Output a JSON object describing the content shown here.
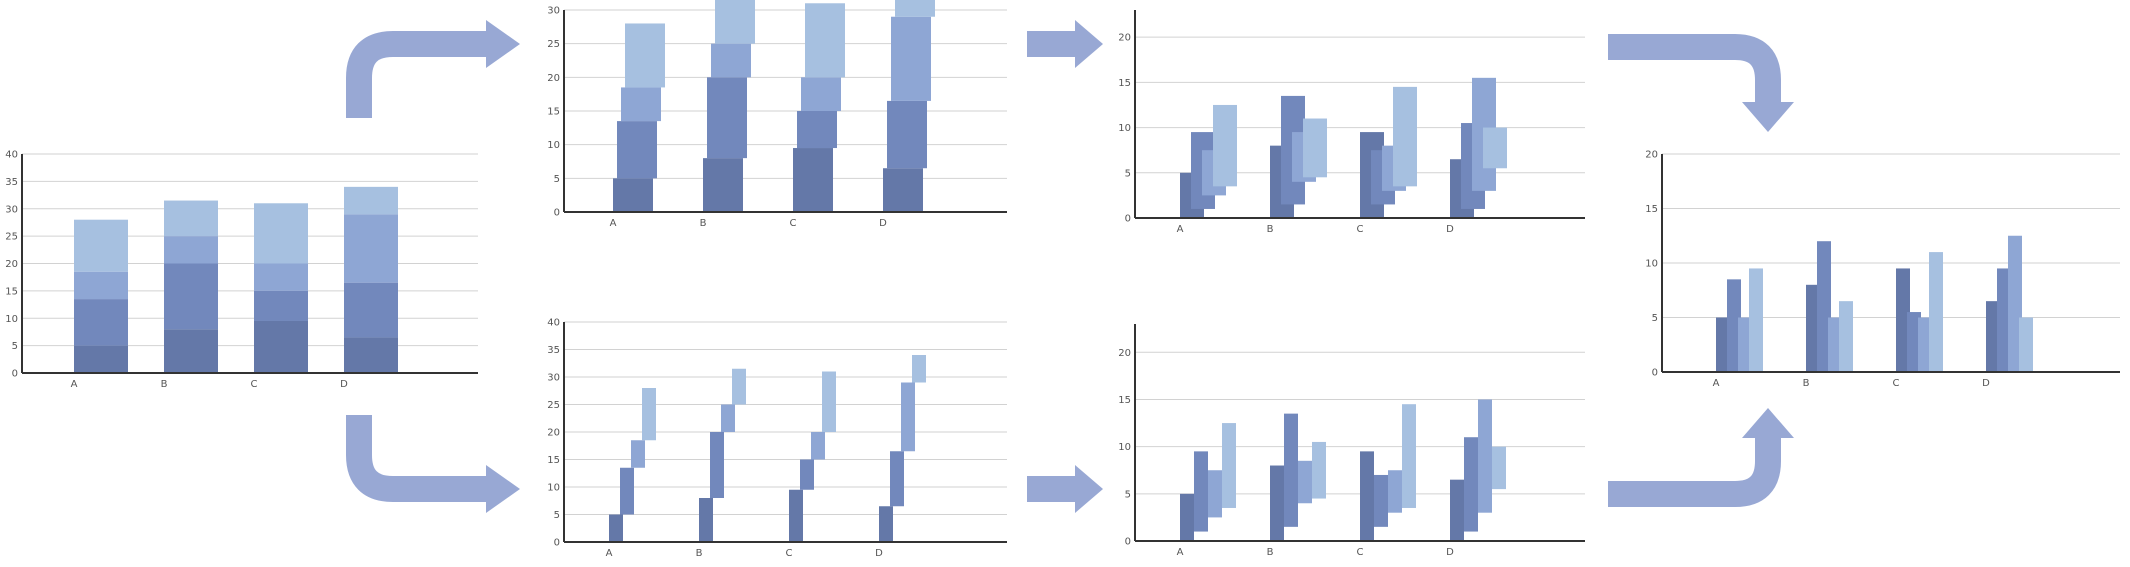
{
  "diagram": {
    "colors": {
      "arrow": "#98a8d4",
      "series": [
        "#6478a8",
        "#7288bc",
        "#8ea6d4",
        "#a6c0e0"
      ],
      "grid": "#d2d2d2",
      "axis": "#333333"
    }
  },
  "chart_data": [
    {
      "id": "stacked",
      "type": "bar",
      "mode": "stacked",
      "categories": [
        "A",
        "B",
        "C",
        "D"
      ],
      "series": [
        {
          "values": [
            5,
            8,
            9.5,
            6.5
          ]
        },
        {
          "values": [
            8.5,
            12,
            5.5,
            10
          ]
        },
        {
          "values": [
            5,
            5,
            5,
            12.5
          ]
        },
        {
          "values": [
            9.5,
            6.5,
            11,
            5
          ]
        }
      ],
      "ylim": [
        0,
        40
      ],
      "yticks": [
        0,
        5,
        10,
        15,
        20,
        25,
        30,
        35,
        40
      ],
      "grid": true
    },
    {
      "id": "stacked-overlapping",
      "type": "bar",
      "mode": "stacked-overlapping",
      "categories": [
        "A",
        "B",
        "C",
        "D"
      ],
      "series": [
        {
          "values": [
            5,
            8,
            9.5,
            6.5
          ]
        },
        {
          "values": [
            8.5,
            12,
            5.5,
            10
          ]
        },
        {
          "values": [
            5,
            5,
            5,
            12.5
          ]
        },
        {
          "values": [
            9.5,
            6.5,
            11,
            5
          ]
        }
      ],
      "ylim": [
        0,
        30
      ],
      "yticks": [
        0,
        5,
        10,
        15,
        20,
        25,
        30
      ],
      "grid": true
    },
    {
      "id": "stacked-staggered",
      "type": "bar",
      "mode": "stacked-staggered",
      "categories": [
        "A",
        "B",
        "C",
        "D"
      ],
      "series": [
        {
          "values": [
            5,
            8,
            9.5,
            6.5
          ]
        },
        {
          "values": [
            8.5,
            12,
            5.5,
            10
          ]
        },
        {
          "values": [
            5,
            5,
            5,
            12.5
          ]
        },
        {
          "values": [
            9.5,
            6.5,
            11,
            5
          ]
        }
      ],
      "ylim": [
        0,
        40
      ],
      "yticks": [
        0,
        5,
        10,
        15,
        20,
        25,
        30,
        35,
        40
      ],
      "grid": true
    },
    {
      "id": "floating-overlapping",
      "type": "bar",
      "mode": "floating-overlapping",
      "categories": [
        "A",
        "B",
        "C",
        "D"
      ],
      "bars": [
        [
          [
            0,
            5
          ],
          [
            1,
            9.5
          ],
          [
            2.5,
            7.5
          ],
          [
            3.5,
            12.5
          ]
        ],
        [
          [
            0,
            8
          ],
          [
            1.5,
            13.5
          ],
          [
            4,
            9.5
          ],
          [
            4.5,
            11
          ]
        ],
        [
          [
            0,
            9.5
          ],
          [
            1.5,
            7.5
          ],
          [
            3,
            8
          ],
          [
            3.5,
            14.5
          ]
        ],
        [
          [
            0,
            6.5
          ],
          [
            1,
            10.5
          ],
          [
            3,
            15.5
          ],
          [
            5.5,
            10
          ]
        ]
      ],
      "ylim": [
        0,
        23
      ],
      "yticks": [
        0,
        5,
        10,
        15,
        20
      ],
      "grid": true
    },
    {
      "id": "floating-staggered",
      "type": "bar",
      "mode": "floating-staggered",
      "categories": [
        "A",
        "B",
        "C",
        "D"
      ],
      "bars": [
        [
          [
            0,
            5
          ],
          [
            1,
            9.5
          ],
          [
            2.5,
            7.5
          ],
          [
            3.5,
            12.5
          ]
        ],
        [
          [
            0,
            8
          ],
          [
            1.5,
            13.5
          ],
          [
            4,
            8.5
          ],
          [
            4.5,
            10.5
          ]
        ],
        [
          [
            0,
            9.5
          ],
          [
            1.5,
            7
          ],
          [
            3,
            7.5
          ],
          [
            3.5,
            14.5
          ]
        ],
        [
          [
            0,
            6.5
          ],
          [
            1,
            11
          ],
          [
            3,
            15
          ],
          [
            5.5,
            10
          ]
        ]
      ],
      "ylim": [
        0,
        23
      ],
      "yticks": [
        0,
        5,
        10,
        15,
        20
      ],
      "grid": true
    },
    {
      "id": "grouped",
      "type": "bar",
      "mode": "grouped",
      "categories": [
        "A",
        "B",
        "C",
        "D"
      ],
      "series": [
        {
          "values": [
            5,
            8,
            9.5,
            6.5
          ]
        },
        {
          "values": [
            8.5,
            12,
            5.5,
            9.5
          ]
        },
        {
          "values": [
            5,
            5,
            5,
            12.5
          ]
        },
        {
          "values": [
            9.5,
            6.5,
            11,
            5
          ]
        }
      ],
      "ylim": [
        0,
        20
      ],
      "yticks": [
        0,
        5,
        10,
        15,
        20
      ],
      "grid": true
    }
  ]
}
